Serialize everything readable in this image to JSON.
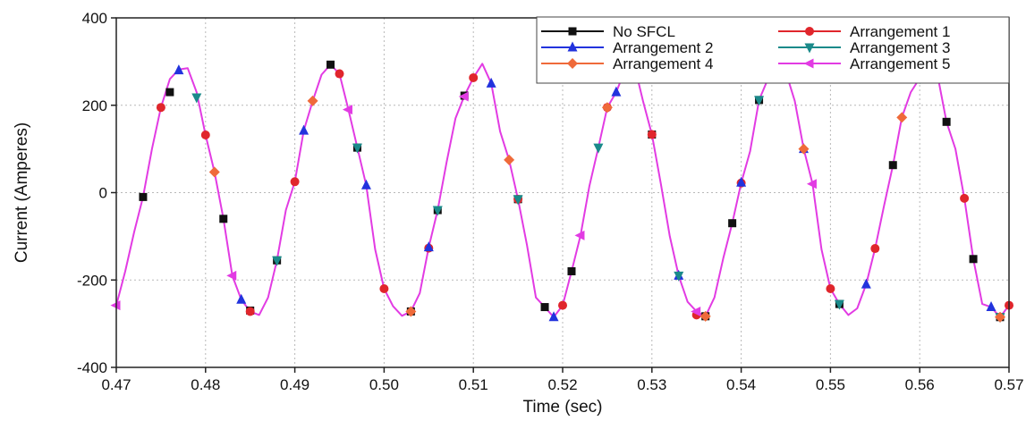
{
  "chart_data": {
    "type": "line",
    "xlabel": "Time (sec)",
    "ylabel": "Current (Amperes)",
    "xlim": [
      0.47,
      0.57
    ],
    "ylim": [
      -400,
      400
    ],
    "xticks": [
      0.47,
      0.48,
      0.49,
      0.5,
      0.51,
      0.52,
      0.53,
      0.54,
      0.55,
      0.56,
      0.57
    ],
    "xtick_labels": [
      "0.47",
      "0.48",
      "0.49",
      "0.50",
      "0.51",
      "0.52",
      "0.53",
      "0.54",
      "0.55",
      "0.56",
      "0.57"
    ],
    "yticks": [
      -400,
      -200,
      0,
      200,
      400
    ],
    "ytick_labels": [
      "-400",
      "-200",
      "0",
      "200",
      "400"
    ],
    "grid": true,
    "legend_position": "top-right",
    "line_color": "#e23be3",
    "x": [
      0.47,
      0.471,
      0.472,
      0.473,
      0.474,
      0.475,
      0.476,
      0.477,
      0.478,
      0.479,
      0.48,
      0.481,
      0.482,
      0.483,
      0.484,
      0.485,
      0.486,
      0.487,
      0.488,
      0.489,
      0.49,
      0.491,
      0.492,
      0.493,
      0.494,
      0.495,
      0.496,
      0.497,
      0.498,
      0.499,
      0.5,
      0.501,
      0.502,
      0.503,
      0.504,
      0.505,
      0.506,
      0.507,
      0.508,
      0.509,
      0.51,
      0.511,
      0.512,
      0.513,
      0.514,
      0.515,
      0.516,
      0.517,
      0.518,
      0.519,
      0.52,
      0.521,
      0.522,
      0.523,
      0.524,
      0.525,
      0.526,
      0.527,
      0.528,
      0.529,
      0.53,
      0.531,
      0.532,
      0.533,
      0.534,
      0.535,
      0.536,
      0.537,
      0.538,
      0.539,
      0.54,
      0.541,
      0.542,
      0.543,
      0.544,
      0.545,
      0.546,
      0.547,
      0.548,
      0.549,
      0.55,
      0.551,
      0.552,
      0.553,
      0.554,
      0.555,
      0.556,
      0.557,
      0.558,
      0.559,
      0.56,
      0.561,
      0.562,
      0.563,
      0.564,
      0.565,
      0.566,
      0.567,
      0.568,
      0.569,
      0.57
    ],
    "series": [
      {
        "name": "No SFCL",
        "color": "#111111",
        "marker": "square",
        "markers": [
          [
            0.473,
            -10
          ],
          [
            0.476,
            230
          ],
          [
            0.482,
            -60
          ],
          [
            0.485,
            -270
          ],
          [
            0.488,
            -155
          ],
          [
            0.494,
            293
          ],
          [
            0.497,
            103
          ],
          [
            0.503,
            -272
          ],
          [
            0.506,
            -40
          ],
          [
            0.509,
            222
          ],
          [
            0.515,
            -15
          ],
          [
            0.518,
            -262
          ],
          [
            0.521,
            -180
          ],
          [
            0.527,
            282
          ],
          [
            0.53,
            133
          ],
          [
            0.536,
            -283
          ],
          [
            0.539,
            -70
          ],
          [
            0.542,
            212
          ],
          [
            0.545,
            276
          ],
          [
            0.551,
            -255
          ],
          [
            0.557,
            63
          ],
          [
            0.56,
            262
          ],
          [
            0.563,
            162
          ],
          [
            0.566,
            -152
          ],
          [
            0.569,
            -285
          ]
        ]
      },
      {
        "name": "Arrangement 1",
        "color": "#e0262c",
        "marker": "circle",
        "markers": [
          [
            0.475,
            195
          ],
          [
            0.48,
            132
          ],
          [
            0.485,
            -272
          ],
          [
            0.49,
            25
          ],
          [
            0.495,
            272
          ],
          [
            0.5,
            -220
          ],
          [
            0.505,
            -127
          ],
          [
            0.51,
            263
          ],
          [
            0.515,
            -15
          ],
          [
            0.52,
            -258
          ],
          [
            0.525,
            195
          ],
          [
            0.53,
            133
          ],
          [
            0.535,
            -280
          ],
          [
            0.54,
            22
          ],
          [
            0.545,
            276
          ],
          [
            0.55,
            -220
          ],
          [
            0.555,
            -128
          ],
          [
            0.56,
            262
          ],
          [
            0.565,
            -13
          ],
          [
            0.57,
            -258
          ]
        ]
      },
      {
        "name": "Arrangement 2",
        "color": "#2233dd",
        "marker": "triangle-up",
        "markers": [
          [
            0.477,
            280
          ],
          [
            0.484,
            -245
          ],
          [
            0.491,
            142
          ],
          [
            0.498,
            17
          ],
          [
            0.505,
            -125
          ],
          [
            0.512,
            250
          ],
          [
            0.519,
            -285
          ],
          [
            0.526,
            230
          ],
          [
            0.533,
            -190
          ],
          [
            0.54,
            23
          ],
          [
            0.547,
            100
          ],
          [
            0.554,
            -210
          ],
          [
            0.561,
            268
          ],
          [
            0.568,
            -262
          ]
        ]
      },
      {
        "name": "Arrangement 3",
        "color": "#1a8a8a",
        "marker": "triangle-down",
        "markers": [
          [
            0.479,
            218
          ],
          [
            0.488,
            -155
          ],
          [
            0.497,
            103
          ],
          [
            0.506,
            -40
          ],
          [
            0.515,
            -15
          ],
          [
            0.524,
            103
          ],
          [
            0.533,
            -190
          ],
          [
            0.542,
            212
          ],
          [
            0.551,
            -255
          ],
          [
            0.56,
            262
          ],
          [
            0.569,
            -285
          ]
        ]
      },
      {
        "name": "Arrangement 4",
        "color": "#ef6a3a",
        "marker": "diamond",
        "markers": [
          [
            0.481,
            47
          ],
          [
            0.492,
            210
          ],
          [
            0.503,
            -272
          ],
          [
            0.514,
            75
          ],
          [
            0.525,
            195
          ],
          [
            0.536,
            -283
          ],
          [
            0.547,
            100
          ],
          [
            0.558,
            172
          ],
          [
            0.569,
            -285
          ]
        ]
      },
      {
        "name": "Arrangement 5",
        "color": "#e23be3",
        "marker": "triangle-left",
        "markers": [
          [
            0.47,
            -258
          ],
          [
            0.483,
            -190
          ],
          [
            0.496,
            190
          ],
          [
            0.509,
            220
          ],
          [
            0.522,
            -98
          ],
          [
            0.535,
            -272
          ],
          [
            0.548,
            20
          ],
          [
            0.561,
            268
          ]
        ]
      }
    ],
    "curve_y": [
      -258,
      -180,
      -90,
      -10,
      100,
      195,
      260,
      282,
      285,
      230,
      132,
      47,
      -60,
      -190,
      -245,
      -272,
      -280,
      -240,
      -155,
      -40,
      25,
      142,
      210,
      270,
      293,
      272,
      190,
      103,
      17,
      -130,
      -220,
      -260,
      -282,
      -272,
      -230,
      -125,
      -40,
      70,
      170,
      222,
      263,
      295,
      250,
      140,
      75,
      -15,
      -120,
      -240,
      -262,
      -285,
      -258,
      -180,
      -98,
      15,
      103,
      195,
      230,
      282,
      295,
      210,
      133,
      20,
      -100,
      -190,
      -250,
      -272,
      -283,
      -240,
      -150,
      -70,
      22,
      95,
      212,
      260,
      293,
      276,
      210,
      100,
      20,
      -130,
      -220,
      -255,
      -280,
      -265,
      -210,
      -128,
      -30,
      63,
      172,
      230,
      262,
      280,
      268,
      162,
      100,
      -13,
      -152,
      -255,
      -262,
      -285,
      -258
    ]
  }
}
